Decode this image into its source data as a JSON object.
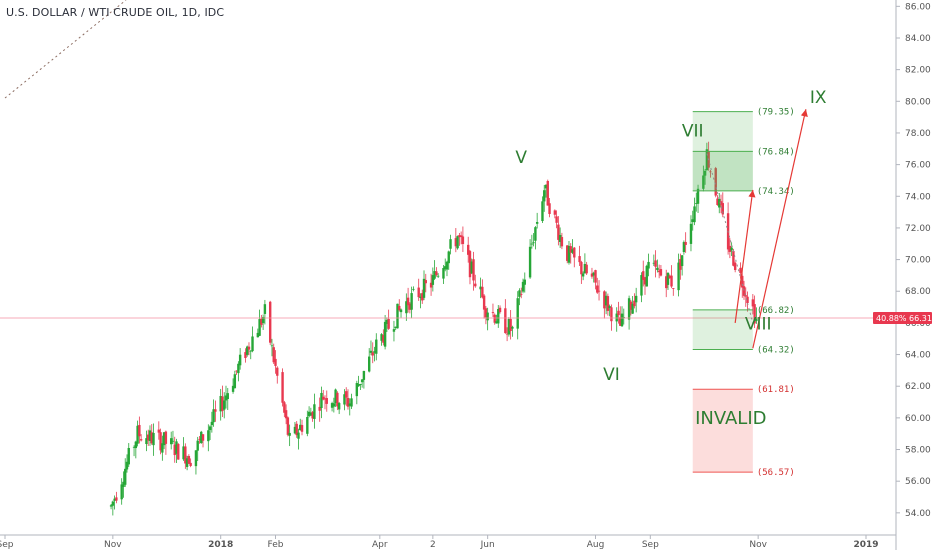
{
  "header": {
    "title": "U.S. DOLLAR / WTI CRUDE OIL, 1D, IDC"
  },
  "price_tags": {
    "last_price": "66.31",
    "change_pct": "40.88%"
  },
  "colors": {
    "up": "#26a637",
    "down": "#e8384f",
    "target_green": "#2e7d32",
    "invalid_red": "#ef5350"
  },
  "chart_data": {
    "type": "candlestick",
    "title": "U.S. DOLLAR / WTI CRUDE OIL, 1D, IDC",
    "x_ticks": [
      "Sep",
      "Nov",
      "2018",
      "Feb",
      "Apr",
      "2",
      "Jun",
      "Aug",
      "Sep",
      "Nov",
      "2019"
    ],
    "y_range": [
      52.6,
      86.4
    ],
    "y_ticks": [
      "54.00",
      "56.00",
      "58.00",
      "60.00",
      "62.00",
      "64.00",
      "66.00",
      "68.00",
      "70.00",
      "72.00",
      "74.00",
      "76.00",
      "78.00",
      "80.00",
      "82.00",
      "84.00",
      "86.00"
    ],
    "last_price": 66.31,
    "series": {
      "dates": [
        "2017-10-31",
        "2017-11-15",
        "2017-11-30",
        "2017-12-15",
        "2017-12-31",
        "2018-01-15",
        "2018-01-26",
        "2018-02-09",
        "2018-02-28",
        "2018-03-15",
        "2018-03-31",
        "2018-04-15",
        "2018-04-30",
        "2018-05-15",
        "2018-05-31",
        "2018-06-15",
        "2018-07-03",
        "2018-07-15",
        "2018-07-31",
        "2018-08-15",
        "2018-08-31",
        "2018-09-15",
        "2018-10-03",
        "2018-10-15",
        "2018-10-31"
      ],
      "values": [
        54.4,
        59.0,
        58.5,
        57.5,
        60.5,
        64.2,
        66.6,
        58.5,
        61.4,
        61.0,
        64.8,
        67.2,
        68.5,
        71.5,
        67.0,
        65.5,
        74.5,
        70.5,
        68.6,
        65.8,
        69.5,
        68.5,
        76.7,
        71.0,
        66.3
      ]
    },
    "waves": [
      {
        "label": "V",
        "value": 75.1
      },
      {
        "label": "VI",
        "value": 64.3
      },
      {
        "label": "VII",
        "value": 76.9
      },
      {
        "label": "VIII",
        "value": 66.2
      },
      {
        "label": "IX",
        "value": 79.5
      }
    ],
    "zones": [
      {
        "label_top": "(79.35)",
        "label_bottom": "(74.34)",
        "top": 79.35,
        "bottom": 74.34,
        "mid_label": "(76.84)",
        "mid": 76.84,
        "color": "green"
      },
      {
        "label_top": "(66.82)",
        "label_bottom": "(64.32)",
        "top": 66.82,
        "bottom": 64.32,
        "color": "green"
      },
      {
        "label_top": "(61.81)",
        "label_bottom": "(56.57)",
        "top": 61.81,
        "bottom": 56.57,
        "text": "INVALID",
        "color": "red"
      }
    ]
  }
}
